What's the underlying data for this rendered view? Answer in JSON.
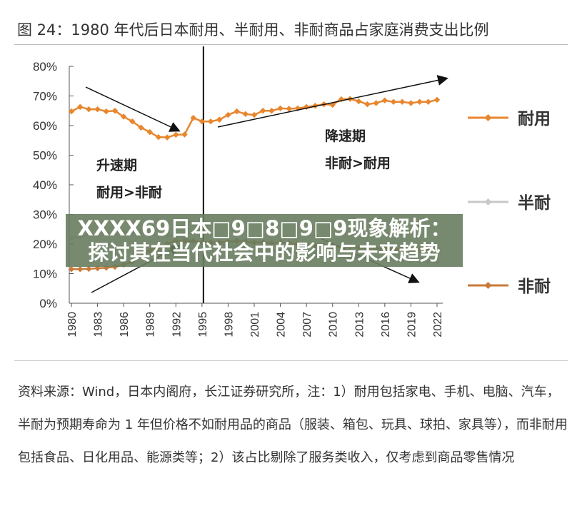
{
  "title": "图 24：1980 年代后日本耐用、半耐用、非耐商品占家庭消费支出比例",
  "banner": "XXXX69日本□9□8□9□9现象解析：探讨其在当代社会中的影响与未来趋势",
  "note": "资料来源：Wind，日本内阁府，长江证券研究所，注：1）耐用包括家电、手机、电脑、汽车，半耐为预期寿命为 1 年但价格不如耐用品的商品（服装、箱包、玩具、球拍、家具等），而非耐用包括食品、日化用品、能源类等；2）该占比剔除了服务类收入，仅考虑到商品零售情况",
  "chart_data": {
    "type": "line",
    "title": "图 24：1980 年代后日本耐用、半耐用、非耐商品占家庭消费支出比例",
    "x": [
      1980,
      1981,
      1982,
      1983,
      1984,
      1985,
      1986,
      1987,
      1988,
      1989,
      1990,
      1991,
      1992,
      1993,
      1994,
      1995,
      1996,
      1997,
      1998,
      1999,
      2000,
      2001,
      2002,
      2003,
      2004,
      2005,
      2006,
      2007,
      2008,
      2009,
      2010,
      2011,
      2012,
      2013,
      2014,
      2015,
      2016,
      2017,
      2018,
      2019,
      2020,
      2021,
      2022
    ],
    "xticks": [
      "1980",
      "1983",
      "1986",
      "1989",
      "1992",
      "1995",
      "1998",
      "2001",
      "2004",
      "2007",
      "2010",
      "2013",
      "2016",
      "2019",
      "2022"
    ],
    "yticks": [
      "0%",
      "10%",
      "20%",
      "30%",
      "40%",
      "50%",
      "60%",
      "70%",
      "80%"
    ],
    "ylim": [
      0,
      80
    ],
    "legend_position": "right",
    "series": [
      {
        "name": "耐用",
        "color": "#e8862e",
        "values": [
          64.8,
          66.3,
          65.5,
          65.5,
          64.8,
          65,
          63,
          61.4,
          59.3,
          57.8,
          56.1,
          56,
          56.9,
          57,
          62.6,
          61.4,
          61.4,
          62,
          63.6,
          64.8,
          63.9,
          63.6,
          65,
          65,
          65.8,
          65.7,
          65.8,
          66.3,
          66.7,
          67.2,
          67,
          68.9,
          69,
          68.2,
          67.2,
          67.6,
          68.5,
          68,
          68,
          67.6,
          68,
          68,
          68.7
        ]
      },
      {
        "name": "半耐",
        "color": "#c8c8c8",
        "values": [
          22,
          22.5,
          23,
          23,
          23.5,
          23.5,
          24,
          24,
          24,
          23.5,
          23,
          23,
          22.5,
          22,
          21,
          20.5,
          20,
          20,
          19.5,
          19,
          19,
          18.5,
          18,
          18,
          17.5,
          17.5,
          17,
          17,
          16.5,
          16.5,
          16,
          16,
          15.5,
          15.5,
          15.5,
          15,
          15,
          15,
          14.5,
          14.5,
          14.5,
          14,
          14
        ]
      },
      {
        "name": "非耐",
        "color": "#c97a3a",
        "values": [
          11.5,
          11.5,
          11.6,
          11.8,
          12,
          12.3,
          13,
          14,
          15.8,
          17.8,
          19,
          20,
          21,
          21,
          21,
          20.5,
          20.5,
          20.5,
          20.8,
          21,
          20.8,
          20.5,
          20.5,
          20.3,
          20.5,
          20.2,
          20,
          19.8,
          19.5,
          19.5,
          19.2,
          19,
          19,
          18.8,
          18.5,
          18.5,
          18.5,
          18.3,
          18.2,
          18,
          18,
          18,
          18.2
        ]
      }
    ],
    "annotations": [
      {
        "label": "升速期",
        "sub": "耐用>非耐"
      },
      {
        "label": "降速期",
        "sub": "非耐>耐用"
      }
    ],
    "divider_year": 1995
  }
}
